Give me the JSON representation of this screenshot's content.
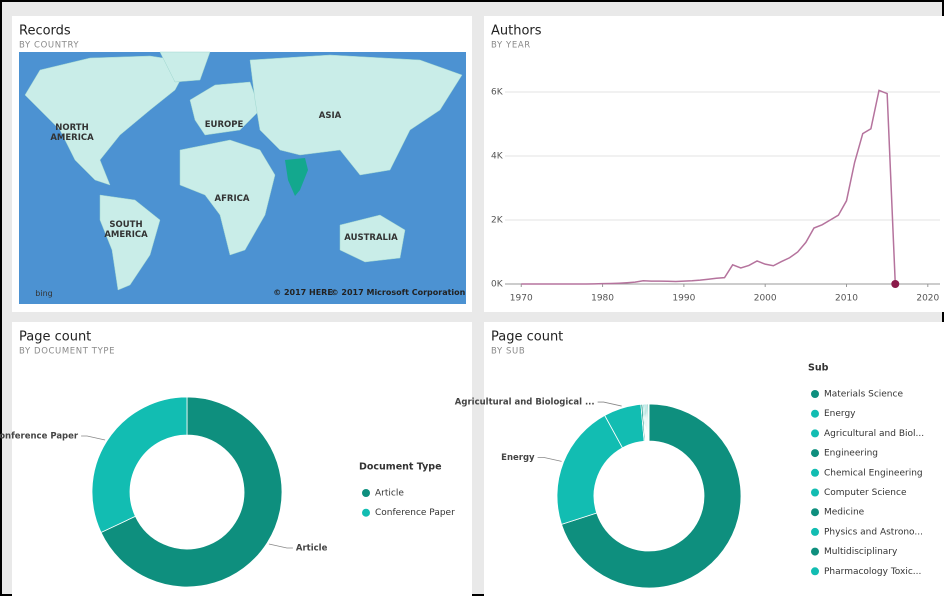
{
  "chart_data": [
    {
      "type": "map",
      "title": "Records",
      "subtitle": "BY COUNTRY",
      "labels": [
        "NORTH AMERICA",
        "EUROPE",
        "ASIA",
        "AFRICA",
        "SOUTH AMERICA",
        "AUSTRALIA"
      ],
      "attribution": [
        "© 2017 HERE",
        "© 2017 Microsoft Corporation"
      ],
      "logo": "bing"
    },
    {
      "type": "line",
      "title": "Authors",
      "subtitle": "BY YEAR",
      "color": "#b5739d",
      "marker_color": "#8b1a4a",
      "x": [
        1970,
        1971,
        1972,
        1973,
        1974,
        1975,
        1976,
        1977,
        1978,
        1979,
        1980,
        1981,
        1982,
        1983,
        1984,
        1985,
        1986,
        1987,
        1988,
        1989,
        1990,
        1991,
        1992,
        1993,
        1994,
        1995,
        1996,
        1997,
        1998,
        1999,
        2000,
        2001,
        2002,
        2003,
        2004,
        2005,
        2006,
        2007,
        2008,
        2009,
        2010,
        2011,
        2012,
        2013,
        2014,
        2015,
        2016
      ],
      "values": [
        0,
        0,
        0,
        0,
        0,
        0,
        0,
        0,
        0,
        5,
        10,
        15,
        25,
        40,
        60,
        100,
        90,
        90,
        85,
        80,
        90,
        100,
        120,
        150,
        180,
        200,
        600,
        500,
        580,
        720,
        620,
        570,
        700,
        820,
        1000,
        1300,
        1750,
        1850,
        2000,
        2150,
        2600,
        3800,
        4700,
        4850,
        6050,
        5950,
        0
      ],
      "xlim": [
        1968,
        2021.5
      ],
      "xticks": [
        1970,
        1980,
        1990,
        2000,
        2010,
        2020
      ],
      "ylim": [
        0,
        6600
      ],
      "yticks": [
        {
          "value": 0,
          "label": "0K"
        },
        {
          "value": 2000,
          "label": "2K"
        },
        {
          "value": 4000,
          "label": "4K"
        },
        {
          "value": 6000,
          "label": "6K"
        }
      ],
      "grid": true
    },
    {
      "type": "donut",
      "title": "Page count",
      "subtitle": "BY DOCUMENT TYPE",
      "legend_title": "Document Type",
      "categories": [
        "Article",
        "Conference Paper"
      ],
      "values": [
        68,
        32
      ],
      "colors": [
        "#0e8f7e",
        "#12bdb2"
      ]
    },
    {
      "type": "donut",
      "title": "Page count",
      "subtitle": "BY SUB",
      "legend_title": "Sub",
      "categories": [
        "Materials Science",
        "Energy",
        "Agricultural and Biol...",
        "Engineering",
        "Chemical Engineering",
        "Computer Science",
        "Medicine",
        "Physics and Astrono...",
        "Multidisciplinary",
        "Pharmacology Toxic..."
      ],
      "values": [
        70,
        22,
        6.6,
        0.3,
        0.2,
        0.2,
        0.2,
        0.2,
        0.2,
        0.1
      ],
      "colors": [
        "#0e8f7e",
        "#12bdb2",
        "#12bdb2",
        "#0e8f7e",
        "#12bdb2",
        "#12bdb2",
        "#0e8f7e",
        "#12bdb2",
        "#0e8f7e",
        "#12bdb2"
      ],
      "callouts": [
        null,
        "Energy",
        "Agricultural and Biological ...",
        null,
        null,
        null,
        null,
        null,
        null,
        null
      ]
    }
  ]
}
